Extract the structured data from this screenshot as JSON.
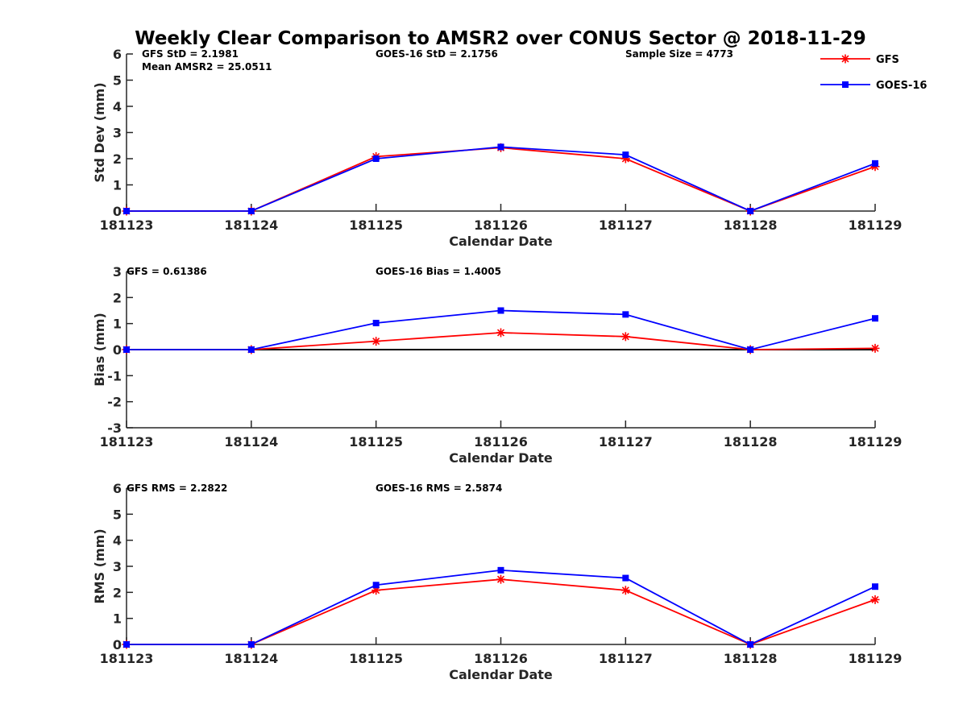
{
  "title": "Weekly Clear Comparison to AMSR2 over CONUS Sector @ 2018-11-29",
  "legend": [
    {
      "label": "GFS",
      "color": "#ff0000",
      "marker": "asterisk"
    },
    {
      "label": "GOES-16",
      "color": "#0000ff",
      "marker": "square"
    }
  ],
  "chart_data": [
    {
      "type": "line",
      "ylabel": "Std Dev (mm)",
      "xlabel": "Calendar Date",
      "categories": [
        "181123",
        "181124",
        "181125",
        "181126",
        "181127",
        "181128",
        "181129"
      ],
      "ylim": [
        0,
        6
      ],
      "yticks": [
        "0",
        "1",
        "2",
        "3",
        "4",
        "5",
        "6"
      ],
      "zero_line": false,
      "stats": [
        "GFS StD = 2.1981",
        "Mean AMSR2 = 25.0511",
        "GOES-16 StD = 2.1756",
        "Sample Size = 4773"
      ],
      "series": [
        {
          "name": "GFS",
          "color": "#ff0000",
          "marker": "asterisk",
          "values": [
            0.0,
            0.0,
            2.08,
            2.42,
            2.0,
            0.0,
            1.7
          ]
        },
        {
          "name": "GOES-16",
          "color": "#0000ff",
          "marker": "square",
          "values": [
            0.0,
            0.0,
            2.0,
            2.45,
            2.15,
            0.0,
            1.82
          ]
        }
      ]
    },
    {
      "type": "line",
      "ylabel": "Bias (mm)",
      "xlabel": "Calendar Date",
      "categories": [
        "181123",
        "181124",
        "181125",
        "181126",
        "181127",
        "181128",
        "181129"
      ],
      "ylim": [
        -3,
        3
      ],
      "yticks": [
        "-3",
        "-2",
        "-1",
        "0",
        "1",
        "2",
        "3"
      ],
      "zero_line": true,
      "stats": [
        "GFS = 0.61386",
        "GOES-16 Bias  = 1.4005"
      ],
      "series": [
        {
          "name": "GFS",
          "color": "#ff0000",
          "marker": "asterisk",
          "values": [
            0.0,
            0.0,
            0.32,
            0.65,
            0.5,
            0.0,
            0.05
          ]
        },
        {
          "name": "GOES-16",
          "color": "#0000ff",
          "marker": "square",
          "values": [
            0.0,
            0.0,
            1.02,
            1.5,
            1.35,
            0.0,
            1.2
          ]
        }
      ]
    },
    {
      "type": "line",
      "ylabel": "RMS (mm)",
      "xlabel": "Calendar Date",
      "categories": [
        "181123",
        "181124",
        "181125",
        "181126",
        "181127",
        "181128",
        "181129"
      ],
      "ylim": [
        0,
        6
      ],
      "yticks": [
        "0",
        "1",
        "2",
        "3",
        "4",
        "5",
        "6"
      ],
      "zero_line": false,
      "stats": [
        "GFS RMS = 2.2822",
        "GOES-16 RMS = 2.5874"
      ],
      "series": [
        {
          "name": "GFS",
          "color": "#ff0000",
          "marker": "asterisk",
          "values": [
            0.0,
            0.0,
            2.08,
            2.5,
            2.08,
            0.0,
            1.72
          ]
        },
        {
          "name": "GOES-16",
          "color": "#0000ff",
          "marker": "square",
          "values": [
            0.0,
            0.0,
            2.28,
            2.85,
            2.55,
            0.0,
            2.22
          ]
        }
      ]
    }
  ]
}
